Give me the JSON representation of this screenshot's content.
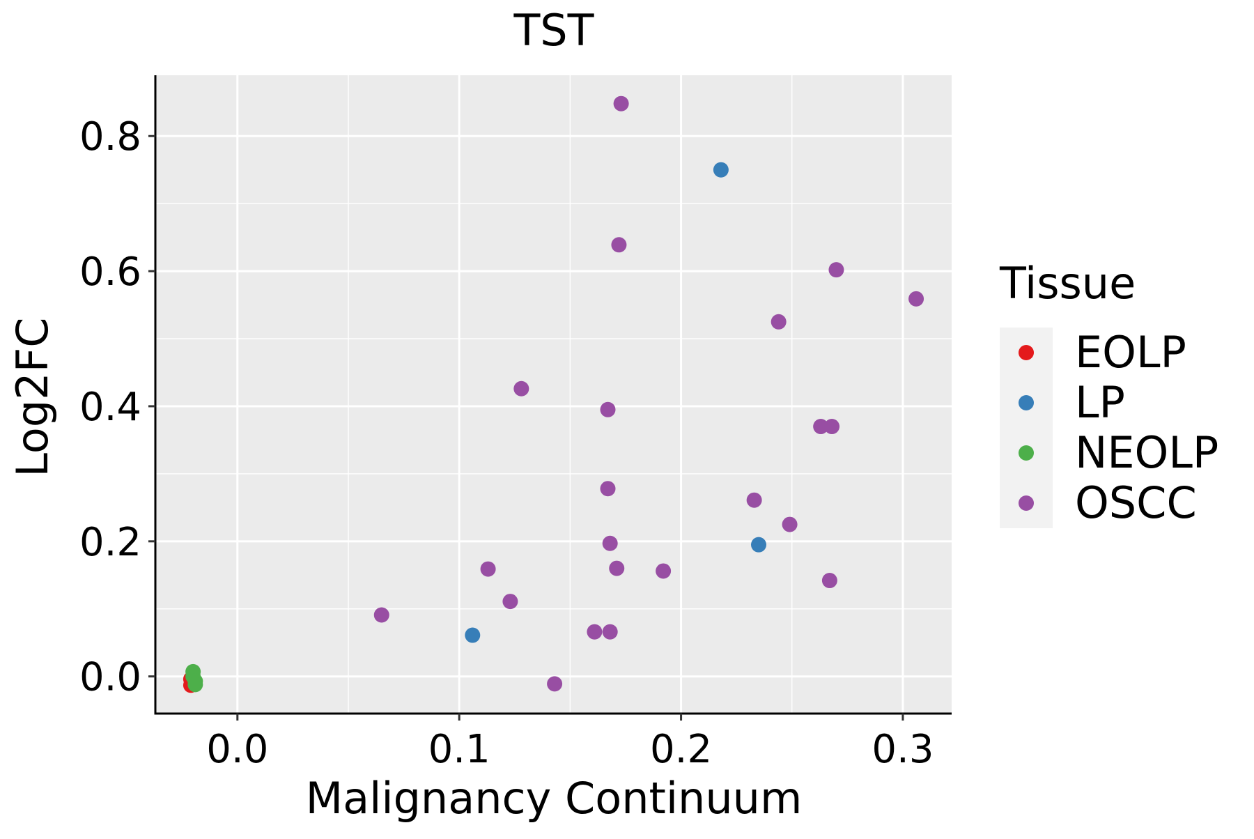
{
  "chart_data": {
    "type": "scatter",
    "title": "TST",
    "xlabel": "Malignancy Continuum",
    "ylabel": "Log2FC",
    "xlim": [
      -0.037,
      0.322
    ],
    "ylim": [
      -0.055,
      0.89
    ],
    "x_ticks": [
      0.0,
      0.1,
      0.2,
      0.3
    ],
    "x_tick_labels": [
      "0.0",
      "0.1",
      "0.2",
      "0.3"
    ],
    "y_ticks": [
      0.0,
      0.2,
      0.4,
      0.6,
      0.8
    ],
    "y_tick_labels": [
      "0.0",
      "0.2",
      "0.4",
      "0.6",
      "0.8"
    ],
    "x_minor_ticks": [
      0.05,
      0.15,
      0.25
    ],
    "y_minor_ticks": [
      0.1,
      0.3,
      0.5,
      0.7
    ],
    "grid": true,
    "legend": {
      "title": "Tissue",
      "position": "right",
      "entries": [
        "EOLP",
        "LP",
        "NEOLP",
        "OSCC"
      ]
    },
    "colors": {
      "EOLP": "#E41A1C",
      "LP": "#377EB8",
      "NEOLP": "#4DAF4A",
      "OSCC": "#984EA3",
      "panel_background": "#EBEBEB",
      "grid": "#FFFFFF"
    },
    "series": [
      {
        "name": "EOLP",
        "points": [
          {
            "x": -0.021,
            "y": -0.013
          },
          {
            "x": -0.021,
            "y": -0.004
          }
        ]
      },
      {
        "name": "LP",
        "points": [
          {
            "x": 0.106,
            "y": 0.061
          },
          {
            "x": 0.218,
            "y": 0.75
          },
          {
            "x": 0.235,
            "y": 0.195
          }
        ]
      },
      {
        "name": "NEOLP",
        "points": [
          {
            "x": -0.02,
            "y": 0.007
          },
          {
            "x": -0.02,
            "y": 0.0
          },
          {
            "x": -0.019,
            "y": -0.007
          },
          {
            "x": -0.019,
            "y": -0.012
          }
        ]
      },
      {
        "name": "OSCC",
        "points": [
          {
            "x": 0.065,
            "y": 0.091
          },
          {
            "x": 0.113,
            "y": 0.159
          },
          {
            "x": 0.123,
            "y": 0.111
          },
          {
            "x": 0.128,
            "y": 0.426
          },
          {
            "x": 0.143,
            "y": -0.011
          },
          {
            "x": 0.161,
            "y": 0.066
          },
          {
            "x": 0.168,
            "y": 0.066
          },
          {
            "x": 0.167,
            "y": 0.395
          },
          {
            "x": 0.167,
            "y": 0.278
          },
          {
            "x": 0.168,
            "y": 0.197
          },
          {
            "x": 0.171,
            "y": 0.16
          },
          {
            "x": 0.172,
            "y": 0.639
          },
          {
            "x": 0.173,
            "y": 0.848
          },
          {
            "x": 0.192,
            "y": 0.156
          },
          {
            "x": 0.233,
            "y": 0.261
          },
          {
            "x": 0.244,
            "y": 0.525
          },
          {
            "x": 0.249,
            "y": 0.225
          },
          {
            "x": 0.263,
            "y": 0.37
          },
          {
            "x": 0.267,
            "y": 0.142
          },
          {
            "x": 0.268,
            "y": 0.37
          },
          {
            "x": 0.27,
            "y": 0.602
          },
          {
            "x": 0.306,
            "y": 0.559
          }
        ]
      }
    ]
  }
}
